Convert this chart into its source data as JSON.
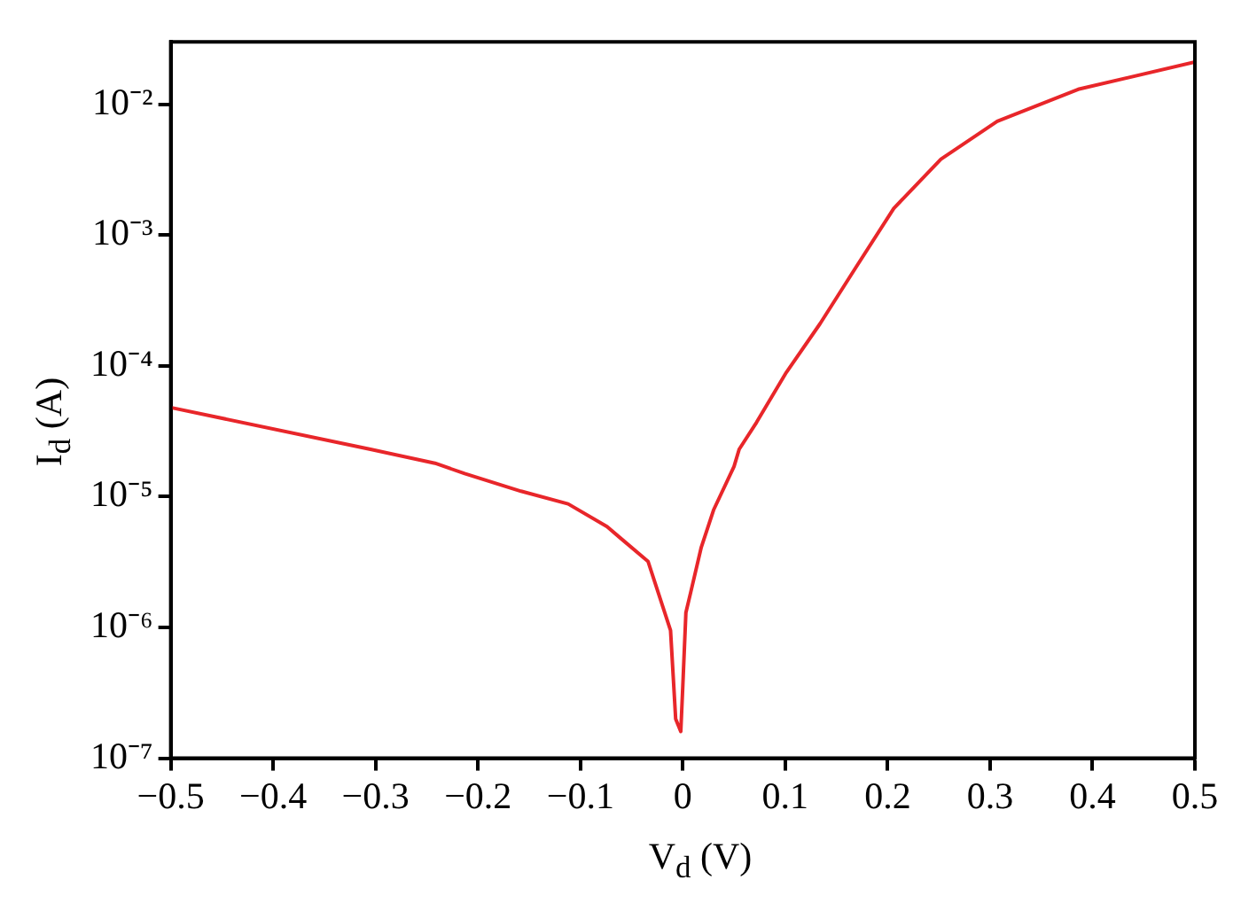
{
  "chart_data": {
    "type": "line",
    "xlabel": "V$_{d}$ (V)",
    "ylabel": "I$_{d}$ (A)",
    "log": "y",
    "marker": "none",
    "line_style": "solid",
    "xlim": [
      -0.5,
      0.5
    ],
    "ylim": [
      1e-07,
      0.03
    ],
    "xticks": [
      {
        "value": -0.5,
        "label": "−0.5"
      },
      {
        "value": -0.4,
        "label": "−0.4"
      },
      {
        "value": -0.3,
        "label": "−0.3"
      },
      {
        "value": -0.2,
        "label": "−0.2"
      },
      {
        "value": -0.1,
        "label": "−0.1"
      },
      0,
      0.1,
      0.2,
      0.3,
      0.4,
      0.5
    ],
    "yticks": [
      {
        "value": 1e-07,
        "label": "10⁻⁷"
      },
      {
        "value": 1e-06,
        "label": "10⁻⁶"
      },
      {
        "value": 1e-05,
        "label": "10⁻⁵"
      },
      {
        "value": 0.0001,
        "label": "10⁻⁴"
      },
      {
        "value": 0.001,
        "label": "10⁻³"
      },
      {
        "value": 0.01,
        "label": "10⁻²"
      }
    ],
    "series": [
      {
        "color": "#e8262a",
        "x": [
          -0.5,
          -0.305,
          -0.242,
          -0.213,
          -0.158,
          -0.112,
          -0.074,
          -0.062,
          -0.034,
          -0.012,
          -0.007,
          -0.002,
          0.0,
          0.003,
          0.008,
          0.018,
          0.03,
          0.05,
          0.055,
          0.072,
          0.101,
          0.134,
          0.168,
          0.206,
          0.252,
          0.307,
          0.386,
          0.5
        ],
        "values": [
          4.8e-05,
          2.3e-05,
          1.8e-05,
          1.5e-05,
          1.1e-05,
          8.8e-06,
          5.9e-06,
          4.9e-06,
          3.2e-06,
          9.5e-07,
          2e-07,
          1.6e-07,
          3.6e-07,
          1.3e-06,
          1.9e-06,
          4.1e-06,
          7.9e-06,
          1.7e-05,
          2.3e-05,
          3.7e-05,
          8.9e-05,
          0.00021,
          0.00055,
          0.0016,
          0.0038,
          0.0074,
          0.013,
          0.021
        ]
      }
    ]
  }
}
